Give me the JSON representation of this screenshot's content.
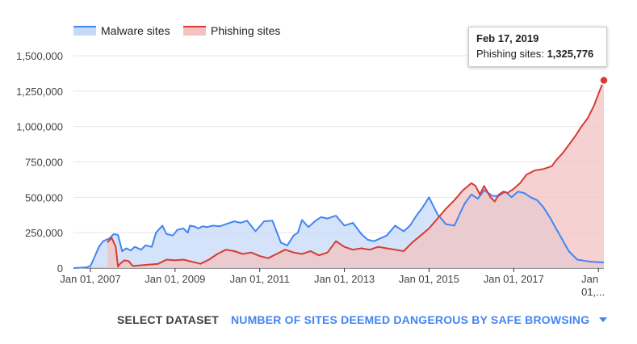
{
  "legend": [
    {
      "label": "Malware sites",
      "line_color": "#4285f4",
      "fill_color": "#c6d9f7"
    },
    {
      "label": "Phishing sites",
      "line_color": "#d93a33",
      "fill_color": "#f2c3c1"
    }
  ],
  "tooltip": {
    "date": "Feb 17, 2019",
    "series_label": "Phishing sites:",
    "value": "1,325,776"
  },
  "dataset_selector": {
    "label": "SELECT DATASET",
    "value": "NUMBER OF SITES DEEMED DANGEROUS BY SAFE BROWSING",
    "caret_icon": "caret-down-icon"
  },
  "chart_data": {
    "type": "area",
    "xlim": [
      2006.6,
      2019.13
    ],
    "ylim": [
      0,
      1500000
    ],
    "y_ticks": [
      0,
      250000,
      500000,
      750000,
      1000000,
      1250000,
      1500000
    ],
    "y_tick_labels": [
      "0",
      "250,000",
      "500,000",
      "750,000",
      "1,000,000",
      "1,250,000",
      "1,500,000"
    ],
    "x_ticks": [
      2007,
      2009,
      2011,
      2013,
      2015,
      2017,
      2019
    ],
    "x_tick_labels": [
      "Jan 01, 2007",
      "Jan 01, 2009",
      "Jan 01, 2011",
      "Jan 01, 2013",
      "Jan 01, 2015",
      "Jan 01, 2017",
      "Jan\n01,..."
    ],
    "grid": true,
    "legend_position": "top-left",
    "highlight": {
      "series": "Phishing sites",
      "x": 2019.13,
      "y": 1325776
    },
    "series": [
      {
        "name": "Malware sites",
        "x": [
          2006.6,
          2006.9,
          2007.0,
          2007.1,
          2007.2,
          2007.3,
          2007.45,
          2007.55,
          2007.65,
          2007.75,
          2007.85,
          2007.95,
          2008.05,
          2008.2,
          2008.3,
          2008.45,
          2008.55,
          2008.7,
          2008.8,
          2008.95,
          2009.05,
          2009.2,
          2009.3,
          2009.35,
          2009.45,
          2009.55,
          2009.65,
          2009.75,
          2009.9,
          2010.05,
          2010.2,
          2010.4,
          2010.55,
          2010.7,
          2010.9,
          2011.1,
          2011.3,
          2011.5,
          2011.65,
          2011.8,
          2011.9,
          2012.0,
          2012.15,
          2012.3,
          2012.45,
          2012.6,
          2012.8,
          2013.0,
          2013.2,
          2013.4,
          2013.55,
          2013.7,
          2013.85,
          2014.0,
          2014.2,
          2014.4,
          2014.55,
          2014.7,
          2014.85,
          2015.0,
          2015.2,
          2015.4,
          2015.6,
          2015.75,
          2015.85,
          2016.0,
          2016.15,
          2016.3,
          2016.5,
          2016.65,
          2016.8,
          2016.95,
          2017.1,
          2017.25,
          2017.4,
          2017.55,
          2017.7,
          2017.85,
          2018.0,
          2018.15,
          2018.3,
          2018.5,
          2018.7,
          2018.85,
          2019.0,
          2019.13
        ],
        "values": [
          0,
          5000,
          15000,
          80000,
          150000,
          190000,
          210000,
          240000,
          235000,
          120000,
          140000,
          125000,
          150000,
          130000,
          160000,
          150000,
          250000,
          300000,
          240000,
          230000,
          270000,
          280000,
          250000,
          300000,
          295000,
          280000,
          295000,
          290000,
          300000,
          295000,
          310000,
          330000,
          320000,
          335000,
          260000,
          330000,
          335000,
          180000,
          160000,
          230000,
          250000,
          340000,
          290000,
          330000,
          360000,
          350000,
          370000,
          300000,
          320000,
          240000,
          200000,
          190000,
          210000,
          230000,
          300000,
          260000,
          300000,
          370000,
          430000,
          500000,
          380000,
          310000,
          300000,
          400000,
          460000,
          520000,
          490000,
          550000,
          510000,
          510000,
          540000,
          500000,
          540000,
          530000,
          500000,
          480000,
          430000,
          360000,
          280000,
          200000,
          120000,
          60000,
          50000,
          45000,
          42000,
          40000
        ]
      },
      {
        "name": "Phishing sites",
        "x": [
          2007.4,
          2007.5,
          2007.6,
          2007.65,
          2007.7,
          2007.8,
          2007.9,
          2008.0,
          2008.2,
          2008.4,
          2008.6,
          2008.8,
          2009.0,
          2009.2,
          2009.4,
          2009.6,
          2009.8,
          2010.0,
          2010.2,
          2010.4,
          2010.6,
          2010.8,
          2011.0,
          2011.2,
          2011.4,
          2011.6,
          2011.8,
          2012.0,
          2012.2,
          2012.4,
          2012.6,
          2012.8,
          2013.0,
          2013.2,
          2013.4,
          2013.6,
          2013.8,
          2014.0,
          2014.2,
          2014.4,
          2014.6,
          2014.8,
          2015.0,
          2015.2,
          2015.4,
          2015.6,
          2015.8,
          2016.0,
          2016.1,
          2016.2,
          2016.3,
          2016.45,
          2016.55,
          2016.65,
          2016.75,
          2016.85,
          2017.0,
          2017.15,
          2017.3,
          2017.5,
          2017.7,
          2017.9,
          2018.0,
          2018.15,
          2018.3,
          2018.45,
          2018.6,
          2018.75,
          2018.9,
          2019.0,
          2019.08,
          2019.13
        ],
        "values": [
          180000,
          215000,
          150000,
          10000,
          30000,
          55000,
          50000,
          15000,
          20000,
          25000,
          30000,
          60000,
          55000,
          60000,
          45000,
          30000,
          60000,
          100000,
          130000,
          120000,
          100000,
          110000,
          85000,
          70000,
          100000,
          130000,
          110000,
          100000,
          120000,
          90000,
          110000,
          190000,
          150000,
          130000,
          140000,
          130000,
          150000,
          140000,
          130000,
          120000,
          180000,
          230000,
          280000,
          350000,
          420000,
          480000,
          550000,
          600000,
          580000,
          520000,
          580000,
          500000,
          470000,
          520000,
          540000,
          530000,
          560000,
          600000,
          660000,
          690000,
          700000,
          720000,
          760000,
          810000,
          870000,
          930000,
          1000000,
          1060000,
          1150000,
          1230000,
          1290000,
          1325776
        ]
      }
    ]
  }
}
